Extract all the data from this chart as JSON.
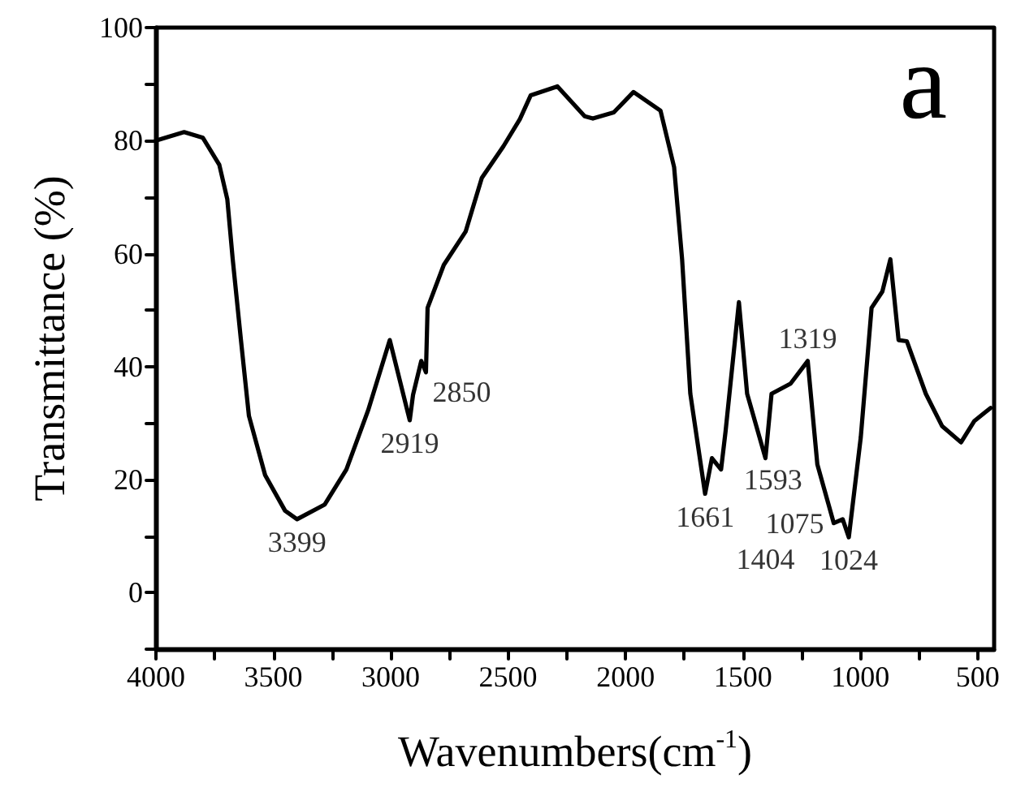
{
  "chart_data": {
    "type": "line",
    "xlabel": "Wavenumbers(cm$^{-1}$)",
    "ylabel": "Transmittance (%)",
    "x": [
      4000,
      3880,
      3800,
      3730,
      3696,
      3673,
      3638,
      3604,
      3535,
      3450,
      3399,
      3281,
      3189,
      3096,
      3004,
      2958,
      2919,
      2905,
      2870,
      2850,
      2843,
      2774,
      2681,
      2612,
      2520,
      2450,
      2404,
      2290,
      2174,
      2139,
      2050,
      1966,
      1851,
      1793,
      1759,
      1724,
      1661,
      1632,
      1593,
      1574,
      1517,
      1482,
      1404,
      1378,
      1297,
      1224,
      1183,
      1113,
      1075,
      1049,
      998,
      952,
      906,
      872,
      837,
      802,
      721,
      652,
      571,
      514,
      445
    ],
    "series": [
      {
        "color": "#000000",
        "values": [
          80,
          81.5,
          80.5,
          75.7,
          69.6,
          59,
          44.7,
          31.3,
          20.8,
          14.5,
          13,
          15.6,
          21.8,
          32.3,
          44.7,
          37,
          30.5,
          35,
          41,
          39,
          50.4,
          58,
          63.9,
          73.4,
          79,
          83.8,
          88,
          89.6,
          84.3,
          83.9,
          85,
          88.6,
          85.3,
          75.3,
          59,
          35.2,
          17.5,
          23.8,
          21.8,
          28.5,
          51.4,
          35.2,
          23.8,
          35.2,
          37,
          41,
          22.7,
          12.3,
          13,
          9.8,
          27.5,
          50.4,
          53.3,
          59,
          44.7,
          44.5,
          35.2,
          29.5,
          26.6,
          30.4,
          32.7
        ]
      }
    ],
    "annotations": [
      {
        "text": "3399",
        "x": 3399,
        "y": 13
      },
      {
        "text": "2919",
        "x": 2919,
        "y": 30.5
      },
      {
        "text": "2850",
        "x": 2850,
        "y": 39
      },
      {
        "text": "1661",
        "x": 1661,
        "y": 17.5
      },
      {
        "text": "1593",
        "x": 1593,
        "y": 21.8
      },
      {
        "text": "1404",
        "x": 1404,
        "y": 23.8
      },
      {
        "text": "1319",
        "x": 1224,
        "y": 41
      },
      {
        "text": "1075",
        "x": 1113,
        "y": 12.3
      },
      {
        "text": "1024",
        "x": 1049,
        "y": 9.8
      },
      "a"
    ],
    "xlim": [
      4000,
      430
    ],
    "xticks": [
      4000,
      {
        "value": 3750,
        "label": null
      },
      3500,
      {
        "value": 3250,
        "label": null
      },
      3000,
      {
        "value": 2750,
        "label": null
      },
      2500,
      {
        "value": 2250,
        "label": null
      },
      2000,
      {
        "value": 1750,
        "label": null
      },
      1500,
      {
        "value": 1250,
        "label": null
      },
      1000,
      {
        "value": 750,
        "label": null
      },
      500
    ],
    "ylim": [
      -10,
      100
    ],
    "yticks": [
      {
        "value": -10,
        "label": null
      },
      0,
      {
        "value": 10,
        "label": null
      },
      20,
      {
        "value": 30,
        "label": null
      },
      40,
      {
        "value": 50,
        "label": null
      },
      60,
      {
        "value": 70,
        "label": null
      },
      80,
      {
        "value": 90,
        "label": null
      },
      100
    ],
    "grid": false,
    "marker": "none",
    "line_style": "solid"
  }
}
